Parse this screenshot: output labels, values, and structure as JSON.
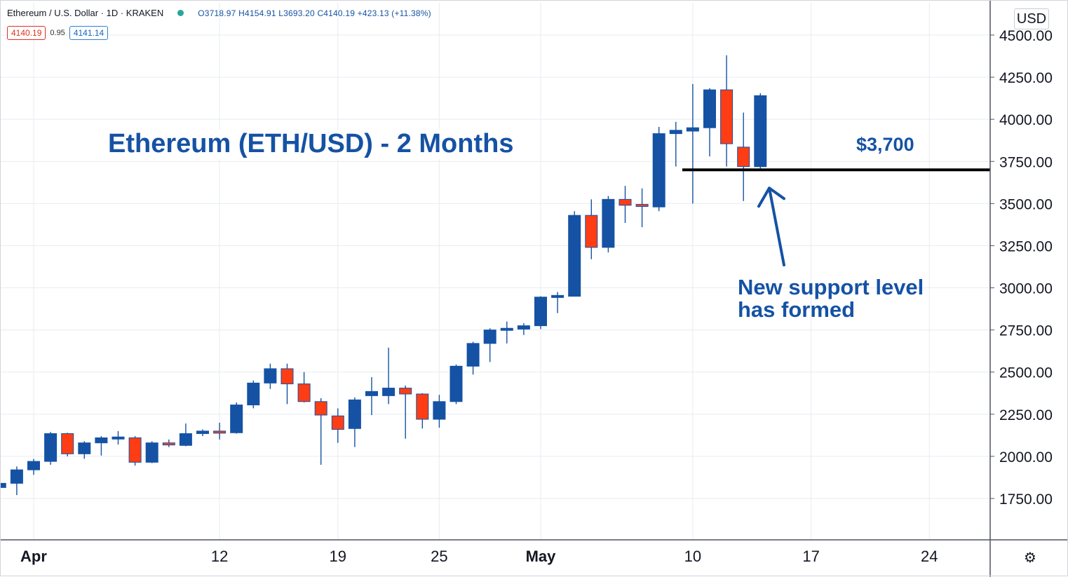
{
  "header": {
    "symbol": "Ethereum / U.S. Dollar · 1D · KRAKEN",
    "ohlc": "O3718.97 H4154.91 L3693.20 C4140.19 +423.13 (+11.38%)",
    "bid": "4140.19",
    "spread": "0.95",
    "ask": "4141.14"
  },
  "currency_button": "USD",
  "settings_icon": "gear-icon",
  "annotations": {
    "title": "Ethereum (ETH/USD) - 2 Months",
    "level_label": "$3,700",
    "note_line1": "New support level",
    "note_line2": "has formed"
  },
  "colors": {
    "up": "#1552a4",
    "down": "#ff3d14",
    "text_accent": "#1552a4",
    "grid": "#e8ebf0"
  },
  "chart_data": {
    "type": "candlestick",
    "ylim": [
      1500,
      4650
    ],
    "y_ticks": [
      "4500.00",
      "4250.00",
      "4000.00",
      "3750.00",
      "3500.00",
      "3250.00",
      "3000.00",
      "2750.00",
      "2500.00",
      "2250.00",
      "2000.00",
      "1750.00"
    ],
    "x_ticks": [
      {
        "label": "Apr",
        "date": "2021-04-01"
      },
      {
        "label": "12",
        "date": "2021-04-12"
      },
      {
        "label": "19",
        "date": "2021-04-19"
      },
      {
        "label": "25",
        "date": "2021-04-25"
      },
      {
        "label": "May",
        "date": "2021-05-01"
      },
      {
        "label": "10",
        "date": "2021-05-10"
      },
      {
        "label": "17",
        "date": "2021-05-17"
      },
      {
        "label": "24",
        "date": "2021-05-24"
      }
    ],
    "support_level": 3700,
    "grid": true,
    "candles": [
      {
        "date": "2021-03-30",
        "open": 1815,
        "high": 1850,
        "low": 1800,
        "close": 1840
      },
      {
        "date": "2021-03-31",
        "open": 1840,
        "high": 1940,
        "low": 1770,
        "close": 1920
      },
      {
        "date": "2021-04-01",
        "open": 1920,
        "high": 1985,
        "low": 1890,
        "close": 1970
      },
      {
        "date": "2021-04-02",
        "open": 1970,
        "high": 2145,
        "low": 1950,
        "close": 2135
      },
      {
        "date": "2021-04-03",
        "open": 2135,
        "high": 2140,
        "low": 2000,
        "close": 2015
      },
      {
        "date": "2021-04-04",
        "open": 2015,
        "high": 2090,
        "low": 1985,
        "close": 2080
      },
      {
        "date": "2021-04-05",
        "open": 2080,
        "high": 2120,
        "low": 2005,
        "close": 2110
      },
      {
        "date": "2021-04-06",
        "open": 2110,
        "high": 2150,
        "low": 2070,
        "close": 2115
      },
      {
        "date": "2021-04-07",
        "open": 2110,
        "high": 2120,
        "low": 1945,
        "close": 1965
      },
      {
        "date": "2021-04-08",
        "open": 1965,
        "high": 2090,
        "low": 1960,
        "close": 2080
      },
      {
        "date": "2021-04-09",
        "open": 2080,
        "high": 2100,
        "low": 2055,
        "close": 2070
      },
      {
        "date": "2021-04-10",
        "open": 2065,
        "high": 2195,
        "low": 2060,
        "close": 2135
      },
      {
        "date": "2021-04-11",
        "open": 2135,
        "high": 2160,
        "low": 2120,
        "close": 2150
      },
      {
        "date": "2021-04-12",
        "open": 2150,
        "high": 2200,
        "low": 2100,
        "close": 2140
      },
      {
        "date": "2021-04-13",
        "open": 2140,
        "high": 2320,
        "low": 2135,
        "close": 2305
      },
      {
        "date": "2021-04-14",
        "open": 2305,
        "high": 2450,
        "low": 2285,
        "close": 2435
      },
      {
        "date": "2021-04-15",
        "open": 2435,
        "high": 2550,
        "low": 2400,
        "close": 2520
      },
      {
        "date": "2021-04-16",
        "open": 2520,
        "high": 2550,
        "low": 2310,
        "close": 2430
      },
      {
        "date": "2021-04-17",
        "open": 2430,
        "high": 2500,
        "low": 2320,
        "close": 2325
      },
      {
        "date": "2021-04-18",
        "open": 2325,
        "high": 2345,
        "low": 1950,
        "close": 2245
      },
      {
        "date": "2021-04-19",
        "open": 2240,
        "high": 2285,
        "low": 2080,
        "close": 2160
      },
      {
        "date": "2021-04-20",
        "open": 2165,
        "high": 2350,
        "low": 2055,
        "close": 2335
      },
      {
        "date": "2021-04-21",
        "open": 2360,
        "high": 2470,
        "low": 2245,
        "close": 2385
      },
      {
        "date": "2021-04-22",
        "open": 2360,
        "high": 2645,
        "low": 2310,
        "close": 2405
      },
      {
        "date": "2021-04-23",
        "open": 2405,
        "high": 2420,
        "low": 2105,
        "close": 2370
      },
      {
        "date": "2021-04-24",
        "open": 2370,
        "high": 2375,
        "low": 2165,
        "close": 2220
      },
      {
        "date": "2021-04-25",
        "open": 2220,
        "high": 2365,
        "low": 2170,
        "close": 2325
      },
      {
        "date": "2021-04-26",
        "open": 2325,
        "high": 2545,
        "low": 2310,
        "close": 2535
      },
      {
        "date": "2021-04-27",
        "open": 2535,
        "high": 2680,
        "low": 2485,
        "close": 2670
      },
      {
        "date": "2021-04-28",
        "open": 2670,
        "high": 2760,
        "low": 2560,
        "close": 2750
      },
      {
        "date": "2021-04-29",
        "open": 2750,
        "high": 2800,
        "low": 2670,
        "close": 2760
      },
      {
        "date": "2021-04-30",
        "open": 2755,
        "high": 2790,
        "low": 2720,
        "close": 2775
      },
      {
        "date": "2021-05-01",
        "open": 2775,
        "high": 2950,
        "low": 2755,
        "close": 2945
      },
      {
        "date": "2021-05-02",
        "open": 2945,
        "high": 2975,
        "low": 2850,
        "close": 2955
      },
      {
        "date": "2021-05-03",
        "open": 2950,
        "high": 3455,
        "low": 2950,
        "close": 3430
      },
      {
        "date": "2021-05-04",
        "open": 3430,
        "high": 3525,
        "low": 3170,
        "close": 3240
      },
      {
        "date": "2021-05-05",
        "open": 3240,
        "high": 3545,
        "low": 3210,
        "close": 3525
      },
      {
        "date": "2021-05-06",
        "open": 3525,
        "high": 3605,
        "low": 3385,
        "close": 3490
      },
      {
        "date": "2021-05-07",
        "open": 3495,
        "high": 3590,
        "low": 3360,
        "close": 3485
      },
      {
        "date": "2021-05-08",
        "open": 3480,
        "high": 3955,
        "low": 3455,
        "close": 3915
      },
      {
        "date": "2021-05-09",
        "open": 3915,
        "high": 3985,
        "low": 3720,
        "close": 3935
      },
      {
        "date": "2021-05-10",
        "open": 3930,
        "high": 4210,
        "low": 3500,
        "close": 3950
      },
      {
        "date": "2021-05-11",
        "open": 3950,
        "high": 4185,
        "low": 3780,
        "close": 4175
      },
      {
        "date": "2021-05-12",
        "open": 4175,
        "high": 4380,
        "low": 3720,
        "close": 3855
      },
      {
        "date": "2021-05-13",
        "open": 3835,
        "high": 4040,
        "low": 3515,
        "close": 3720
      },
      {
        "date": "2021-05-14",
        "open": 3718.97,
        "high": 4154.91,
        "low": 3693.2,
        "close": 4140.19
      }
    ]
  }
}
